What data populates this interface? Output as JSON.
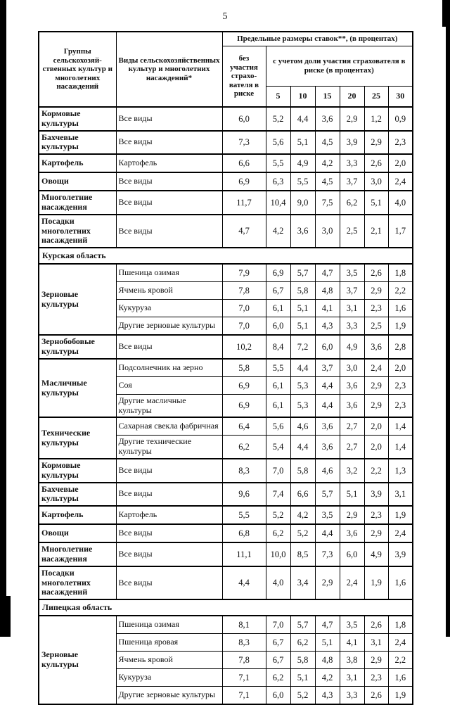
{
  "page": {
    "number": "5"
  },
  "table": {
    "header": {
      "group_col": "Группы сельскохозяй-ственных культур и многолетних насаждений",
      "type_col": "Виды сельскохозяйственных культур и многолетних насаждений*",
      "rates_title": "Предельные размеры ставок**,  (в процентах)",
      "no_participation": "без участия страхо-вателя в риске",
      "with_participation": "с учетом доли участия страхователя в риске (в процентах)",
      "percent_cols": [
        "5",
        "10",
        "15",
        "20",
        "25",
        "30"
      ]
    },
    "sections": [
      {
        "region": null,
        "groups": [
          {
            "group": "Кормовые культуры",
            "rows": [
              {
                "type": "Все виды",
                "values": [
                  "6,0",
                  "5,2",
                  "4,4",
                  "3,6",
                  "2,9",
                  "1,2",
                  "0,9"
                ]
              }
            ]
          },
          {
            "group": "Бахчевые культуры",
            "rows": [
              {
                "type": "Все виды",
                "values": [
                  "7,3",
                  "5,6",
                  "5,1",
                  "4,5",
                  "3,9",
                  "2,9",
                  "2,3"
                ]
              }
            ]
          },
          {
            "group": "Картофель",
            "rows": [
              {
                "type": "Картофель",
                "values": [
                  "6,6",
                  "5,5",
                  "4,9",
                  "4,2",
                  "3,3",
                  "2,6",
                  "2,0"
                ]
              }
            ]
          },
          {
            "group": "Овощи",
            "rows": [
              {
                "type": "Все виды",
                "values": [
                  "6,9",
                  "6,3",
                  "5,5",
                  "4,5",
                  "3,7",
                  "3,0",
                  "2,4"
                ]
              }
            ]
          },
          {
            "group": "Многолетние насаждения",
            "rows": [
              {
                "type": "Все виды",
                "values": [
                  "11,7",
                  "10,4",
                  "9,0",
                  "7,5",
                  "6,2",
                  "5,1",
                  "4,0"
                ]
              }
            ]
          },
          {
            "group": "Посадки многолетних насаждений",
            "rows": [
              {
                "type": "Все виды",
                "values": [
                  "4,7",
                  "4,2",
                  "3,6",
                  "3,0",
                  "2,5",
                  "2,1",
                  "1,7"
                ]
              }
            ]
          }
        ]
      },
      {
        "region": "Курская область",
        "groups": [
          {
            "group": "Зерновые культуры",
            "rows": [
              {
                "type": "Пшеница озимая",
                "values": [
                  "7,9",
                  "6,9",
                  "5,7",
                  "4,7",
                  "3,5",
                  "2,6",
                  "1,8"
                ]
              },
              {
                "type": "Ячмень яровой",
                "values": [
                  "7,8",
                  "6,7",
                  "5,8",
                  "4,8",
                  "3,7",
                  "2,9",
                  "2,2"
                ]
              },
              {
                "type": "Кукуруза",
                "values": [
                  "7,0",
                  "6,1",
                  "5,1",
                  "4,1",
                  "3,1",
                  "2,3",
                  "1,6"
                ]
              },
              {
                "type": "Другие зерновые культуры",
                "values": [
                  "7,0",
                  "6,0",
                  "5,1",
                  "4,3",
                  "3,3",
                  "2,5",
                  "1,9"
                ]
              }
            ]
          },
          {
            "group": "Зернобобовые культуры",
            "rows": [
              {
                "type": "Все виды",
                "values": [
                  "10,2",
                  "8,4",
                  "7,2",
                  "6,0",
                  "4,9",
                  "3,6",
                  "2,8"
                ]
              }
            ]
          },
          {
            "group": "Масличные культуры",
            "rows": [
              {
                "type": "Подсолнечник на зерно",
                "values": [
                  "5,8",
                  "5,5",
                  "4,4",
                  "3,7",
                  "3,0",
                  "2,4",
                  "2,0"
                ]
              },
              {
                "type": "Соя",
                "values": [
                  "6,9",
                  "6,1",
                  "5,3",
                  "4,4",
                  "3,6",
                  "2,9",
                  "2,3"
                ]
              },
              {
                "type": "Другие масличные культуры",
                "values": [
                  "6,9",
                  "6,1",
                  "5,3",
                  "4,4",
                  "3,6",
                  "2,9",
                  "2,3"
                ]
              }
            ]
          },
          {
            "group": "Технические культуры",
            "rows": [
              {
                "type": "Сахарная свекла фабричная",
                "values": [
                  "6,4",
                  "5,6",
                  "4,6",
                  "3,6",
                  "2,7",
                  "2,0",
                  "1,4"
                ]
              },
              {
                "type": "Другие технические культуры",
                "values": [
                  "6,2",
                  "5,4",
                  "4,4",
                  "3,6",
                  "2,7",
                  "2,0",
                  "1,4"
                ]
              }
            ]
          },
          {
            "group": "Кормовые культуры",
            "rows": [
              {
                "type": "Все виды",
                "values": [
                  "8,3",
                  "7,0",
                  "5,8",
                  "4,6",
                  "3,2",
                  "2,2",
                  "1,3"
                ]
              }
            ]
          },
          {
            "group": "Бахчевые культуры",
            "rows": [
              {
                "type": "Все виды",
                "values": [
                  "9,6",
                  "7,4",
                  "6,6",
                  "5,7",
                  "5,1",
                  "3,9",
                  "3,1"
                ]
              }
            ]
          },
          {
            "group": "Картофель",
            "rows": [
              {
                "type": "Картофель",
                "values": [
                  "5,5",
                  "5,2",
                  "4,2",
                  "3,5",
                  "2,9",
                  "2,3",
                  "1,9"
                ]
              }
            ]
          },
          {
            "group": "Овощи",
            "rows": [
              {
                "type": "Все виды",
                "values": [
                  "6,8",
                  "6,2",
                  "5,2",
                  "4,4",
                  "3,6",
                  "2,9",
                  "2,4"
                ]
              }
            ]
          },
          {
            "group": "Многолетние насаждения",
            "rows": [
              {
                "type": "Все виды",
                "values": [
                  "11,1",
                  "10,0",
                  "8,5",
                  "7,3",
                  "6,0",
                  "4,9",
                  "3,9"
                ]
              }
            ]
          },
          {
            "group": "Посадки многолетних насаждений",
            "rows": [
              {
                "type": "Все виды",
                "values": [
                  "4,4",
                  "4,0",
                  "3,4",
                  "2,9",
                  "2,4",
                  "1,9",
                  "1,6"
                ]
              }
            ]
          }
        ]
      },
      {
        "region": "Липецкая область",
        "groups": [
          {
            "group": "Зерновые культуры",
            "rows": [
              {
                "type": "Пшеница озимая",
                "values": [
                  "8,1",
                  "7,0",
                  "5,7",
                  "4,7",
                  "3,5",
                  "2,6",
                  "1,8"
                ]
              },
              {
                "type": "Пшеница яровая",
                "values": [
                  "8,3",
                  "6,7",
                  "6,2",
                  "5,1",
                  "4,1",
                  "3,1",
                  "2,4"
                ]
              },
              {
                "type": "Ячмень яровой",
                "values": [
                  "7,8",
                  "6,7",
                  "5,8",
                  "4,8",
                  "3,8",
                  "2,9",
                  "2,2"
                ]
              },
              {
                "type": "Кукуруза",
                "values": [
                  "7,1",
                  "6,2",
                  "5,1",
                  "4,2",
                  "3,1",
                  "2,3",
                  "1,6"
                ]
              },
              {
                "type": "Другие зерновые культуры",
                "values": [
                  "7,1",
                  "6,0",
                  "5,2",
                  "4,3",
                  "3,3",
                  "2,6",
                  "1,9"
                ]
              }
            ]
          }
        ]
      }
    ]
  }
}
